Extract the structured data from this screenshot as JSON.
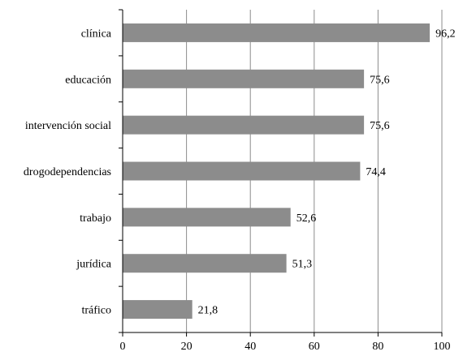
{
  "chart_data": {
    "type": "bar",
    "orientation": "horizontal",
    "categories": [
      "clínica",
      "educación",
      "intervención social",
      "drogodependencias",
      "trabajo",
      "jurídica",
      "tráfico"
    ],
    "values": [
      96.2,
      75.6,
      75.6,
      74.4,
      52.6,
      51.3,
      21.8
    ],
    "value_labels": [
      "96,2",
      "75,6",
      "75,6",
      "74,4",
      "52,6",
      "51,3",
      "21,8"
    ],
    "xlim": [
      0,
      100
    ],
    "x_ticks": [
      0,
      20,
      40,
      60,
      80,
      100
    ],
    "x_tick_labels": [
      "0",
      "20",
      "40",
      "60",
      "80",
      "100"
    ],
    "title": "",
    "xlabel": "",
    "ylabel": "",
    "grid": "vertical",
    "bar_color": "#8c8c8c",
    "grid_color": "#8c8c8c",
    "legend": "none"
  }
}
